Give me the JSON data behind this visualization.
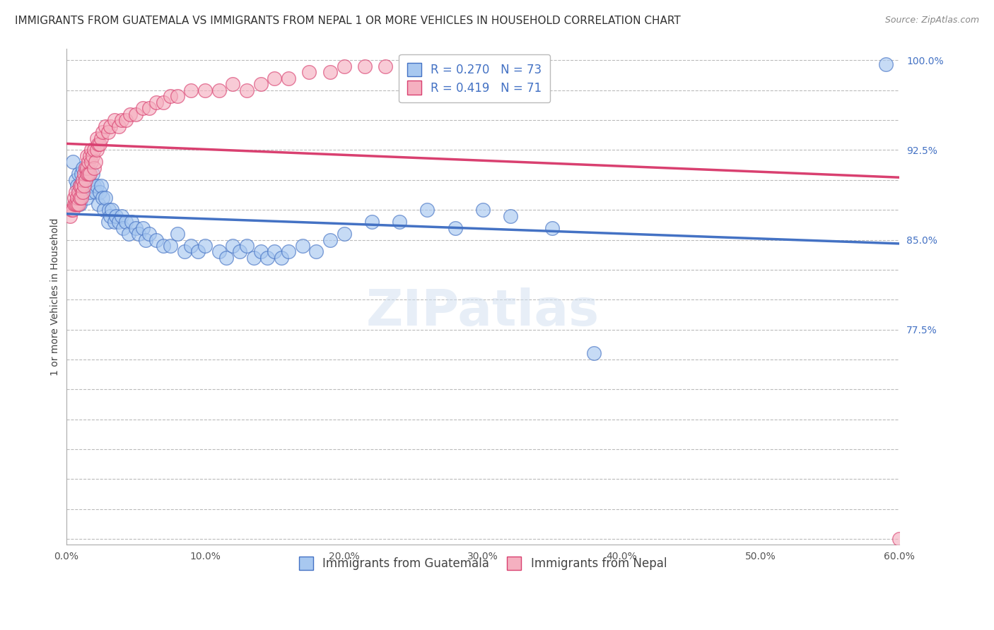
{
  "title": "IMMIGRANTS FROM GUATEMALA VS IMMIGRANTS FROM NEPAL 1 OR MORE VEHICLES IN HOUSEHOLD CORRELATION CHART",
  "source": "Source: ZipAtlas.com",
  "ylabel": "1 or more Vehicles in Household",
  "xlim": [
    0.0,
    0.6
  ],
  "ylim": [
    0.595,
    1.01
  ],
  "yticks": [
    0.6,
    0.625,
    0.65,
    0.675,
    0.7,
    0.725,
    0.75,
    0.775,
    0.8,
    0.825,
    0.85,
    0.875,
    0.9,
    0.925,
    0.95,
    0.975,
    1.0
  ],
  "ytick_labels_show": [
    0.775,
    0.85,
    0.925,
    1.0
  ],
  "xticks": [
    0.0,
    0.1,
    0.2,
    0.3,
    0.4,
    0.5,
    0.6
  ],
  "guatemala_R": 0.27,
  "guatemala_N": 73,
  "nepal_R": 0.419,
  "nepal_N": 71,
  "guatemala_color": "#a8c8f0",
  "nepal_color": "#f5b0c0",
  "guatemala_line_color": "#4472c4",
  "nepal_line_color": "#d94070",
  "legend_label_guatemala": "Immigrants from Guatemala",
  "legend_label_nepal": "Immigrants from Nepal",
  "guatemala_x": [
    0.005,
    0.007,
    0.008,
    0.009,
    0.01,
    0.01,
    0.011,
    0.012,
    0.013,
    0.015,
    0.015,
    0.016,
    0.017,
    0.018,
    0.019,
    0.02,
    0.021,
    0.022,
    0.023,
    0.024,
    0.025,
    0.026,
    0.027,
    0.028,
    0.03,
    0.031,
    0.032,
    0.033,
    0.035,
    0.036,
    0.038,
    0.04,
    0.041,
    0.043,
    0.045,
    0.047,
    0.05,
    0.052,
    0.055,
    0.057,
    0.06,
    0.065,
    0.07,
    0.075,
    0.08,
    0.085,
    0.09,
    0.095,
    0.1,
    0.11,
    0.115,
    0.12,
    0.125,
    0.13,
    0.135,
    0.14,
    0.145,
    0.15,
    0.155,
    0.16,
    0.17,
    0.18,
    0.19,
    0.2,
    0.22,
    0.24,
    0.26,
    0.28,
    0.3,
    0.32,
    0.35,
    0.38,
    0.59
  ],
  "guatemala_y": [
    0.915,
    0.9,
    0.895,
    0.905,
    0.88,
    0.895,
    0.905,
    0.91,
    0.895,
    0.885,
    0.895,
    0.9,
    0.89,
    0.895,
    0.905,
    0.895,
    0.89,
    0.895,
    0.88,
    0.89,
    0.895,
    0.885,
    0.875,
    0.885,
    0.865,
    0.875,
    0.87,
    0.875,
    0.865,
    0.87,
    0.865,
    0.87,
    0.86,
    0.865,
    0.855,
    0.865,
    0.86,
    0.855,
    0.86,
    0.85,
    0.855,
    0.85,
    0.845,
    0.845,
    0.855,
    0.84,
    0.845,
    0.84,
    0.845,
    0.84,
    0.835,
    0.845,
    0.84,
    0.845,
    0.835,
    0.84,
    0.835,
    0.84,
    0.835,
    0.84,
    0.845,
    0.84,
    0.85,
    0.855,
    0.865,
    0.865,
    0.875,
    0.86,
    0.875,
    0.87,
    0.86,
    0.755,
    0.997
  ],
  "nepal_x": [
    0.003,
    0.004,
    0.005,
    0.006,
    0.006,
    0.007,
    0.007,
    0.008,
    0.008,
    0.009,
    0.009,
    0.01,
    0.01,
    0.011,
    0.011,
    0.012,
    0.012,
    0.013,
    0.013,
    0.014,
    0.014,
    0.015,
    0.015,
    0.015,
    0.016,
    0.016,
    0.017,
    0.017,
    0.018,
    0.018,
    0.019,
    0.02,
    0.02,
    0.021,
    0.022,
    0.022,
    0.023,
    0.024,
    0.025,
    0.026,
    0.028,
    0.03,
    0.032,
    0.035,
    0.038,
    0.04,
    0.043,
    0.046,
    0.05,
    0.055,
    0.06,
    0.065,
    0.07,
    0.075,
    0.08,
    0.09,
    0.1,
    0.11,
    0.12,
    0.13,
    0.14,
    0.15,
    0.16,
    0.175,
    0.19,
    0.2,
    0.215,
    0.23,
    0.25,
    0.27,
    0.6
  ],
  "nepal_y": [
    0.87,
    0.875,
    0.875,
    0.88,
    0.885,
    0.88,
    0.89,
    0.88,
    0.885,
    0.88,
    0.89,
    0.885,
    0.895,
    0.885,
    0.895,
    0.89,
    0.9,
    0.895,
    0.905,
    0.9,
    0.91,
    0.905,
    0.91,
    0.92,
    0.905,
    0.915,
    0.905,
    0.92,
    0.915,
    0.925,
    0.92,
    0.91,
    0.925,
    0.915,
    0.925,
    0.935,
    0.93,
    0.93,
    0.935,
    0.94,
    0.945,
    0.94,
    0.945,
    0.95,
    0.945,
    0.95,
    0.95,
    0.955,
    0.955,
    0.96,
    0.96,
    0.965,
    0.965,
    0.97,
    0.97,
    0.975,
    0.975,
    0.975,
    0.98,
    0.975,
    0.98,
    0.985,
    0.985,
    0.99,
    0.99,
    0.995,
    0.995,
    0.995,
    0.998,
    0.995,
    0.6
  ],
  "background_color": "#ffffff",
  "grid_color": "#bbbbbb",
  "title_fontsize": 11,
  "axis_label_fontsize": 10,
  "tick_fontsize": 10,
  "legend_fontsize": 12
}
